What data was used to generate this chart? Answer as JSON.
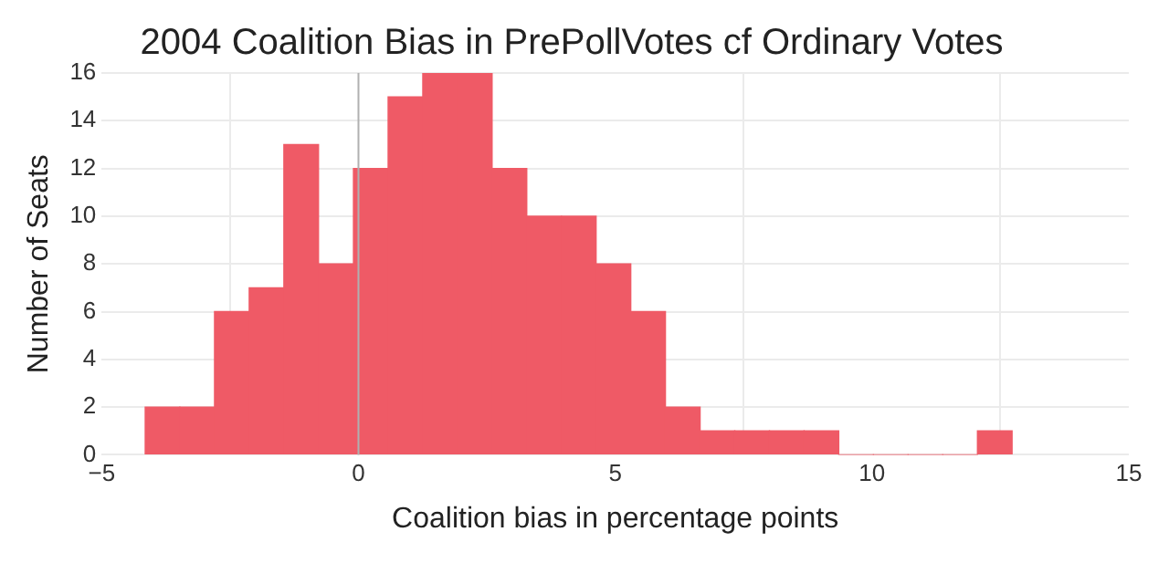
{
  "chart_data": {
    "type": "histogram",
    "title": "2004 Coalition Bias in PrePollVotes cf Ordinary Votes",
    "xlabel": "Coalition bias in percentage points",
    "ylabel": "Number of Seats",
    "bins": [
      -4.15,
      -3.48,
      -2.8,
      -2.13,
      -1.45,
      -0.78,
      -0.1,
      0.58,
      1.25,
      1.93,
      2.6,
      3.28,
      3.95,
      4.63,
      5.3,
      5.98,
      6.65,
      7.33,
      8.0,
      8.68,
      9.35,
      10.03,
      10.7,
      11.38,
      12.05,
      12.73
    ],
    "values": [
      2,
      2,
      6,
      7,
      13,
      8,
      12,
      15,
      16,
      16,
      12,
      10,
      10,
      8,
      6,
      2,
      1,
      1,
      1,
      1,
      0,
      0,
      0,
      0,
      1
    ],
    "color": "#ef5a66",
    "xlim": [
      -5,
      15
    ],
    "xticks": [
      -5,
      0,
      5,
      10,
      15
    ],
    "ylim": [
      0,
      16
    ],
    "yticks": [
      0,
      2,
      4,
      6,
      8,
      10,
      12,
      14,
      16
    ],
    "grid": true,
    "ref_lines": [
      {
        "axis": "x",
        "value": 0,
        "color": "#b0b0b0"
      }
    ]
  }
}
